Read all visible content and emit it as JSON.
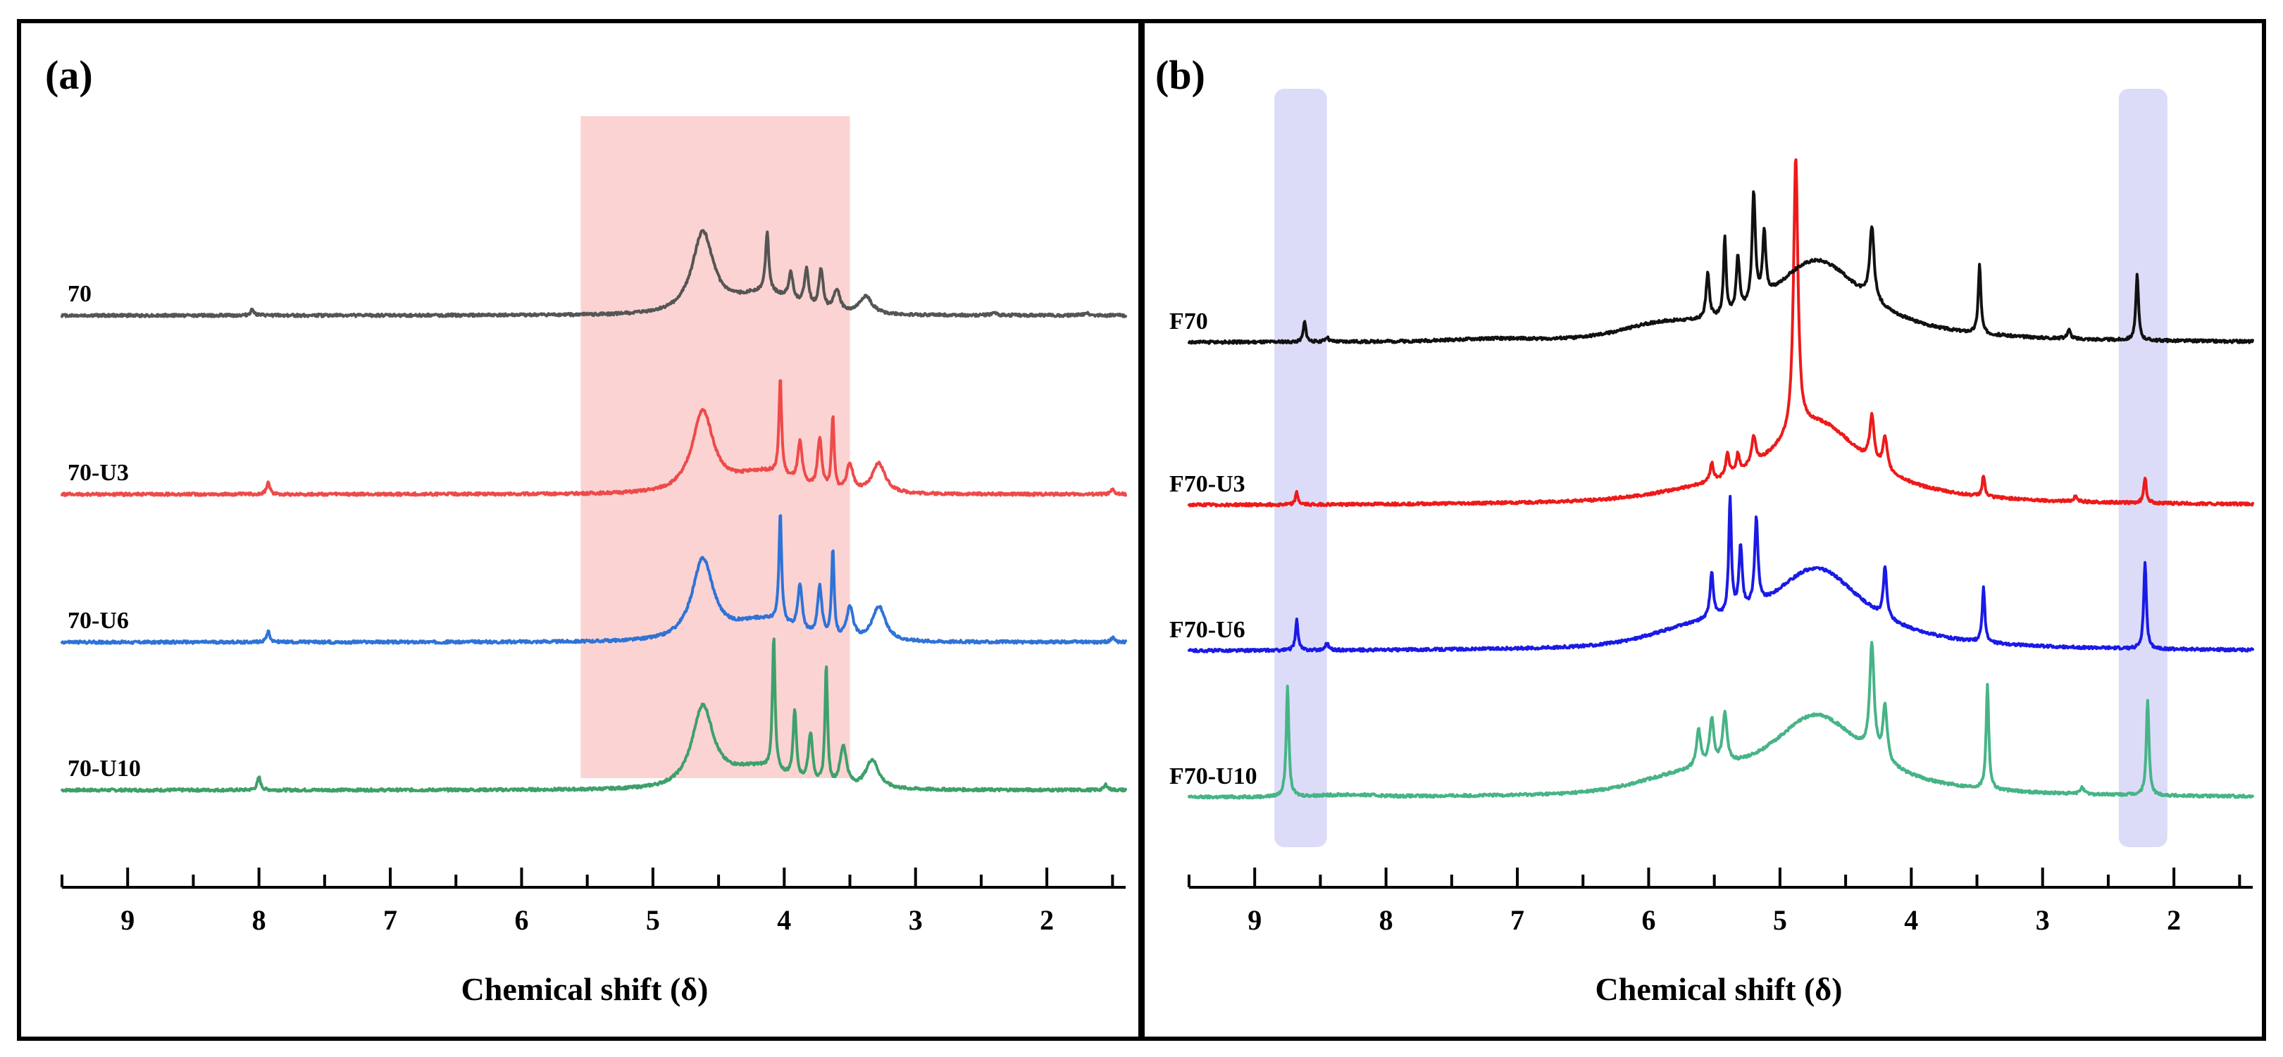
{
  "chart_data": [
    {
      "panel_label": "(a)",
      "type": "line",
      "xlabel": "Chemical shift (δ)",
      "xlim": [
        9.5,
        1.4
      ],
      "ticks": [
        9,
        8,
        7,
        6,
        5,
        4,
        3,
        2
      ],
      "highlight_bands": [
        {
          "from": 5.55,
          "to": 3.5,
          "color": "#fbd3d3"
        }
      ],
      "series": [
        {
          "name": "70-U10",
          "color": "#3ea06a",
          "offset": 3,
          "peaks": [
            [
              8.0,
              0.14,
              0.015
            ],
            [
              4.08,
              1.45,
              0.012
            ],
            [
              3.92,
              0.75,
              0.015
            ],
            [
              3.8,
              0.55,
              0.02
            ],
            [
              3.68,
              1.3,
              0.012
            ],
            [
              3.55,
              0.45,
              0.03
            ],
            [
              3.33,
              0.32,
              0.06
            ],
            [
              1.55,
              0.06,
              0.015
            ]
          ],
          "humps": [
            [
              4.2,
              0.22,
              0.3
            ]
          ]
        },
        {
          "name": "70-U6",
          "color": "#2f73d6",
          "offset": 2,
          "peaks": [
            [
              7.93,
              0.12,
              0.015
            ],
            [
              4.03,
              1.2,
              0.012
            ],
            [
              3.88,
              0.5,
              0.02
            ],
            [
              3.73,
              0.55,
              0.02
            ],
            [
              3.63,
              0.95,
              0.012
            ],
            [
              3.5,
              0.35,
              0.03
            ],
            [
              3.28,
              0.38,
              0.06
            ],
            [
              1.5,
              0.05,
              0.015
            ]
          ],
          "humps": [
            [
              4.15,
              0.22,
              0.3
            ]
          ]
        },
        {
          "name": "70-U3",
          "color": "#ee4a4a",
          "offset": 1,
          "peaks": [
            [
              7.93,
              0.13,
              0.015
            ],
            [
              4.03,
              1.05,
              0.012
            ],
            [
              3.88,
              0.45,
              0.02
            ],
            [
              3.73,
              0.55,
              0.02
            ],
            [
              3.63,
              0.8,
              0.012
            ],
            [
              3.5,
              0.3,
              0.03
            ],
            [
              3.28,
              0.33,
              0.06
            ],
            [
              1.5,
              0.05,
              0.015
            ]
          ],
          "humps": [
            [
              4.15,
              0.22,
              0.3
            ]
          ]
        },
        {
          "name": "70",
          "color": "#555555",
          "offset": 0,
          "peaks": [
            [
              8.05,
              0.07,
              0.015
            ],
            [
              4.13,
              0.65,
              0.015
            ],
            [
              3.95,
              0.3,
              0.02
            ],
            [
              3.83,
              0.4,
              0.02
            ],
            [
              3.72,
              0.45,
              0.02
            ],
            [
              3.6,
              0.25,
              0.03
            ],
            [
              3.38,
              0.2,
              0.06
            ],
            [
              2.4,
              0.03,
              0.02
            ],
            [
              1.7,
              0.03,
              0.02
            ]
          ],
          "humps": [
            [
              4.15,
              0.22,
              0.3
            ]
          ]
        }
      ],
      "solvent_peak": {
        "center": 4.62,
        "width": 0.1,
        "cap": 4.5
      }
    },
    {
      "panel_label": "(b)",
      "type": "line",
      "xlabel": "Chemical shift (δ)",
      "xlim": [
        9.5,
        1.4
      ],
      "ticks": [
        9,
        8,
        7,
        6,
        5,
        4,
        3,
        2
      ],
      "highlight_bands": [
        {
          "from": 8.85,
          "to": 8.45,
          "color": "#dcdcf8"
        },
        {
          "from": 2.42,
          "to": 2.05,
          "color": "#dcdcf8"
        }
      ],
      "series": [
        {
          "name": "F70-U10",
          "color": "#46b487",
          "offset": 3,
          "peaks": [
            [
              8.75,
              1.2,
              0.012
            ],
            [
              5.62,
              0.4,
              0.02
            ],
            [
              5.52,
              0.5,
              0.02
            ],
            [
              5.42,
              0.55,
              0.02
            ],
            [
              4.3,
              1.2,
              0.02
            ],
            [
              4.2,
              0.6,
              0.02
            ],
            [
              3.42,
              1.15,
              0.012
            ],
            [
              2.7,
              0.08,
              0.015
            ],
            [
              2.2,
              1.05,
              0.012
            ]
          ],
          "humps": [
            [
              8.3,
              0.02,
              0.3
            ],
            [
              5.7,
              0.15,
              0.5
            ]
          ]
        },
        {
          "name": "F70-U6",
          "color": "#1a1ae6",
          "offset": 2,
          "peaks": [
            [
              8.68,
              0.33,
              0.012
            ],
            [
              8.45,
              0.08,
              0.015
            ],
            [
              5.52,
              0.5,
              0.015
            ],
            [
              5.38,
              1.25,
              0.012
            ],
            [
              5.3,
              0.7,
              0.015
            ],
            [
              5.18,
              0.95,
              0.015
            ],
            [
              4.2,
              0.55,
              0.015
            ],
            [
              3.45,
              0.6,
              0.012
            ],
            [
              2.22,
              0.95,
              0.012
            ]
          ],
          "humps": [
            [
              5.6,
              0.15,
              0.5
            ]
          ]
        },
        {
          "name": "F70-U3",
          "color": "#ee1a1a",
          "offset": 1,
          "peaks": [
            [
              8.68,
              0.13,
              0.012
            ],
            [
              5.52,
              0.2,
              0.015
            ],
            [
              5.4,
              0.25,
              0.015
            ],
            [
              5.32,
              0.2,
              0.015
            ],
            [
              5.2,
              0.3,
              0.02
            ],
            [
              4.88,
              3.0,
              0.02
            ],
            [
              4.3,
              0.5,
              0.02
            ],
            [
              4.2,
              0.35,
              0.02
            ],
            [
              3.45,
              0.23,
              0.012
            ],
            [
              2.75,
              0.05,
              0.02
            ],
            [
              2.22,
              0.28,
              0.012
            ]
          ],
          "humps": [
            [
              5.6,
              0.05,
              0.5
            ]
          ]
        },
        {
          "name": "F70",
          "color": "#111111",
          "offset": 0,
          "peaks": [
            [
              8.62,
              0.22,
              0.012
            ],
            [
              8.45,
              0.05,
              0.015
            ],
            [
              5.55,
              0.5,
              0.015
            ],
            [
              5.42,
              0.85,
              0.012
            ],
            [
              5.32,
              0.6,
              0.015
            ],
            [
              5.2,
              1.2,
              0.015
            ],
            [
              5.12,
              0.7,
              0.015
            ],
            [
              4.3,
              0.8,
              0.02
            ],
            [
              3.48,
              0.75,
              0.012
            ],
            [
              2.8,
              0.1,
              0.015
            ],
            [
              2.28,
              0.72,
              0.012
            ]
          ],
          "humps": [
            [
              7.2,
              0.02,
              0.4
            ],
            [
              5.9,
              0.12,
              0.4
            ]
          ]
        }
      ],
      "solvent_peak": {
        "center": 4.72,
        "width": 0.45,
        "cap": 4.5
      }
    }
  ]
}
